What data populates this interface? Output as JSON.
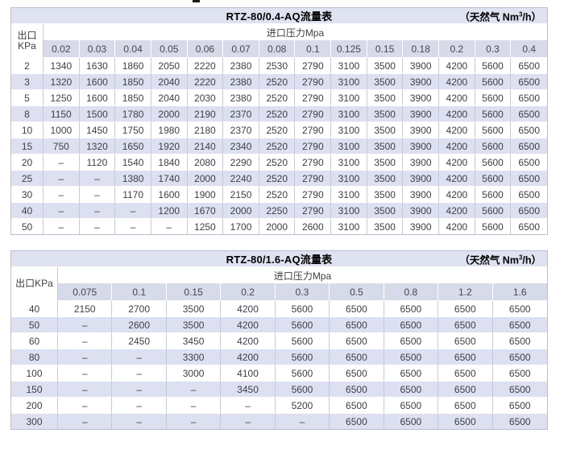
{
  "colors": {
    "title_bar": "#dfe2f0",
    "header_row": "#d6dae9",
    "stripe_row": "#dce0f1",
    "grid_border": "#c5cad8",
    "outer_border": "#b9bfcf"
  },
  "tables": [
    {
      "title": "RTZ-80/0.4-AQ流量表",
      "unit_prefix": "（天然气 Nm",
      "unit_sup": "3",
      "unit_suffix": "/h）",
      "corner_label_lines": [
        "出口",
        "KPa"
      ],
      "inlet_header": "进口压力Mpa",
      "pressures": [
        "0.02",
        "0.03",
        "0.04",
        "0.05",
        "0.06",
        "0.07",
        "0.08",
        "0.1",
        "0.125",
        "0.15",
        "0.18",
        "0.2",
        "0.3",
        "0.4"
      ],
      "rows": [
        {
          "outlet": "2",
          "values": [
            "1340",
            "1630",
            "1860",
            "2050",
            "2220",
            "2380",
            "2530",
            "2790",
            "3100",
            "3500",
            "3900",
            "4200",
            "5600",
            "6500"
          ]
        },
        {
          "outlet": "3",
          "values": [
            "1320",
            "1600",
            "1850",
            "2040",
            "2220",
            "2380",
            "2520",
            "2790",
            "3100",
            "3500",
            "3900",
            "4200",
            "5600",
            "6500"
          ]
        },
        {
          "outlet": "5",
          "values": [
            "1250",
            "1600",
            "1850",
            "2040",
            "2030",
            "2380",
            "2520",
            "2790",
            "3100",
            "3500",
            "3900",
            "4200",
            "5600",
            "6500"
          ]
        },
        {
          "outlet": "8",
          "values": [
            "1150",
            "1500",
            "1780",
            "2000",
            "2190",
            "2370",
            "2520",
            "2790",
            "3100",
            "3500",
            "3900",
            "4200",
            "5600",
            "6500"
          ]
        },
        {
          "outlet": "10",
          "values": [
            "1000",
            "1450",
            "1750",
            "1980",
            "2180",
            "2370",
            "2520",
            "2790",
            "3100",
            "3500",
            "3900",
            "4200",
            "5600",
            "6500"
          ]
        },
        {
          "outlet": "15",
          "values": [
            "750",
            "1320",
            "1650",
            "1920",
            "2140",
            "2340",
            "2520",
            "2790",
            "3100",
            "3500",
            "3900",
            "4200",
            "5600",
            "6500"
          ]
        },
        {
          "outlet": "20",
          "values": [
            "–",
            "1120",
            "1540",
            "1840",
            "2080",
            "2290",
            "2520",
            "2790",
            "3100",
            "3500",
            "3900",
            "4200",
            "5600",
            "6500"
          ]
        },
        {
          "outlet": "25",
          "values": [
            "–",
            "–",
            "1380",
            "1740",
            "2000",
            "2240",
            "2520",
            "2790",
            "3100",
            "3500",
            "3900",
            "4200",
            "5600",
            "6500"
          ]
        },
        {
          "outlet": "30",
          "values": [
            "–",
            "–",
            "1170",
            "1600",
            "1900",
            "2150",
            "2520",
            "2790",
            "3100",
            "3500",
            "3900",
            "4200",
            "5600",
            "6500"
          ]
        },
        {
          "outlet": "40",
          "values": [
            "–",
            "–",
            "–",
            "1200",
            "1670",
            "2000",
            "2250",
            "2790",
            "3100",
            "3500",
            "3900",
            "4200",
            "5600",
            "6500"
          ]
        },
        {
          "outlet": "50",
          "values": [
            "–",
            "–",
            "–",
            "–",
            "1250",
            "1700",
            "2000",
            "2600",
            "3100",
            "3500",
            "3900",
            "4200",
            "5600",
            "6500"
          ]
        }
      ]
    },
    {
      "title": "RTZ-80/1.6-AQ流量表",
      "unit_prefix": "（天然气 Nm",
      "unit_sup": "3",
      "unit_suffix": "/h）",
      "corner_label_lines": [
        "出口KPa"
      ],
      "inlet_header": "进口压力Mpa",
      "pressures": [
        "0.075",
        "0.1",
        "0.15",
        "0.2",
        "0.3",
        "0.5",
        "0.8",
        "1.2",
        "1.6"
      ],
      "rows": [
        {
          "outlet": "40",
          "values": [
            "2150",
            "2700",
            "3500",
            "4200",
            "5600",
            "6500",
            "6500",
            "6500",
            "6500"
          ]
        },
        {
          "outlet": "50",
          "values": [
            "–",
            "2600",
            "3500",
            "4200",
            "5600",
            "6500",
            "6500",
            "6500",
            "6500"
          ]
        },
        {
          "outlet": "60",
          "values": [
            "–",
            "2450",
            "3450",
            "4200",
            "5600",
            "6500",
            "6500",
            "6500",
            "6500"
          ]
        },
        {
          "outlet": "80",
          "values": [
            "–",
            "–",
            "3300",
            "4200",
            "5600",
            "6500",
            "6500",
            "6500",
            "6500"
          ]
        },
        {
          "outlet": "100",
          "values": [
            "–",
            "–",
            "3000",
            "4100",
            "5600",
            "6500",
            "6500",
            "6500",
            "6500"
          ]
        },
        {
          "outlet": "150",
          "values": [
            "–",
            "–",
            "–",
            "3450",
            "5600",
            "6500",
            "6500",
            "6500",
            "6500"
          ]
        },
        {
          "outlet": "200",
          "values": [
            "–",
            "–",
            "–",
            "–",
            "5200",
            "6500",
            "6500",
            "6500",
            "6500"
          ]
        },
        {
          "outlet": "300",
          "values": [
            "–",
            "–",
            "–",
            "–",
            "–",
            "6500",
            "6500",
            "6500",
            "6500"
          ]
        }
      ]
    }
  ]
}
